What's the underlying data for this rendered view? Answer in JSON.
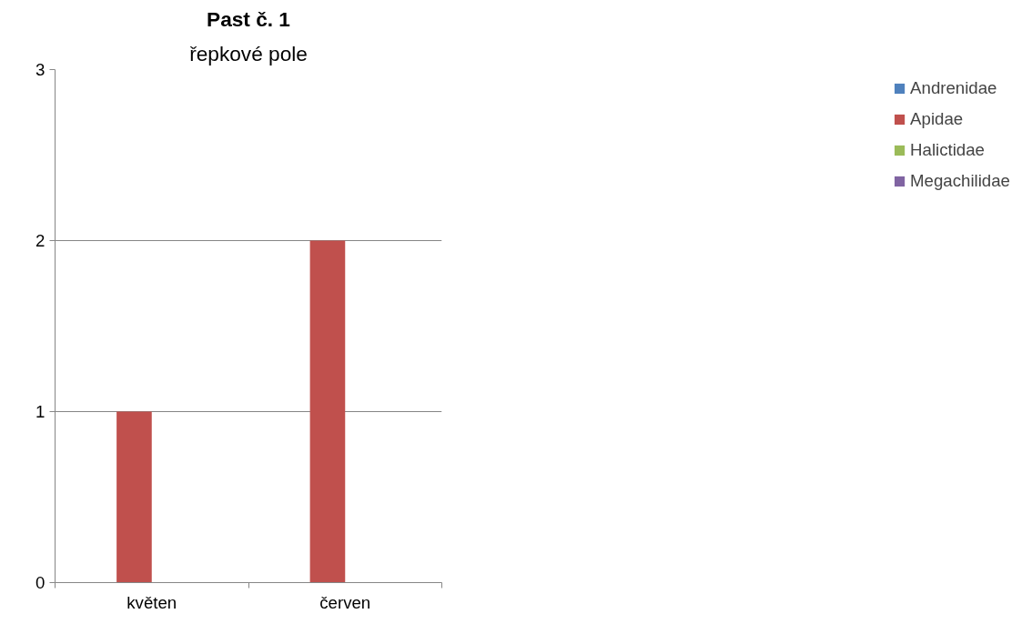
{
  "chart_data": {
    "type": "bar",
    "title": "Past č. 1",
    "subtitle": "řepkové pole",
    "categories": [
      "květen",
      "červen"
    ],
    "series": [
      {
        "name": "Andrenidae",
        "color": "#4f81bd",
        "values": [
          0,
          0
        ]
      },
      {
        "name": "Apidae",
        "color": "#c0504d",
        "values": [
          1,
          2
        ]
      },
      {
        "name": "Halictidae",
        "color": "#9bbb59",
        "values": [
          0,
          0
        ]
      },
      {
        "name": "Megachilidae",
        "color": "#8064a2",
        "values": [
          0,
          0
        ]
      }
    ],
    "ylim": [
      0,
      3
    ],
    "yticks": [
      0,
      1,
      2,
      3
    ],
    "grid": "y",
    "legend": "right"
  }
}
